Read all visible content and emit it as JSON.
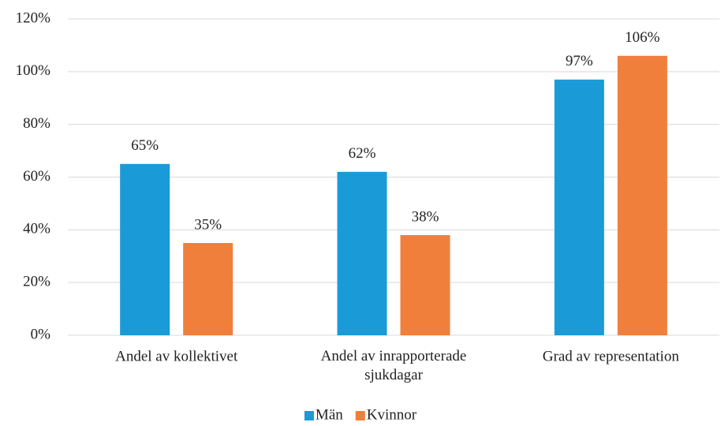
{
  "chart_data": {
    "type": "bar",
    "categories": [
      "Andel av kollektivet",
      "Andel av inrapporterade sjukdagar",
      "Grad av representation"
    ],
    "series": [
      {
        "name": "Män",
        "color": "#1a9bd7",
        "values": [
          65,
          62,
          97
        ],
        "value_labels": [
          "65%",
          "62%",
          "97%"
        ]
      },
      {
        "name": "Kvinnor",
        "color": "#f07f3c",
        "values": [
          35,
          38,
          106
        ],
        "value_labels": [
          "35%",
          "38%",
          "106%"
        ]
      }
    ],
    "ylim": [
      0,
      120
    ],
    "yticks": [
      {
        "value": 0,
        "label": "0%"
      },
      {
        "value": 20,
        "label": "20%"
      },
      {
        "value": 40,
        "label": "40%"
      },
      {
        "value": 60,
        "label": "60%"
      },
      {
        "value": 80,
        "label": "80%"
      },
      {
        "value": 100,
        "label": "100%"
      },
      {
        "value": 120,
        "label": "120%"
      }
    ],
    "grid": true,
    "legend": "bottom"
  }
}
